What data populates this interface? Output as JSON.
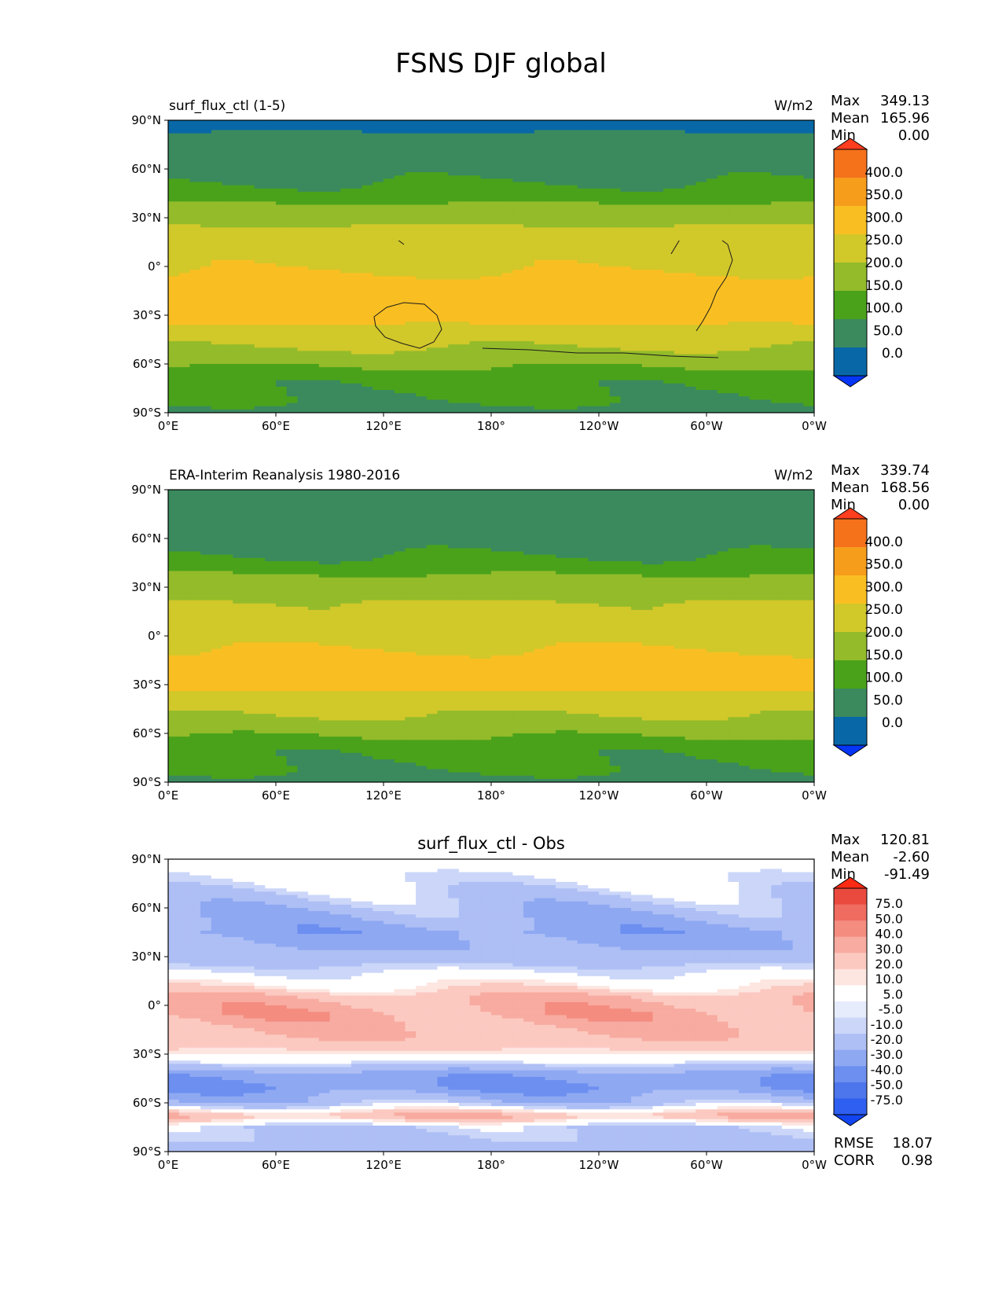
{
  "figure_title": "FSNS DJF global",
  "colors": {
    "main_levels": [
      "#0535f5",
      "#0868a7",
      "#3a8a5e",
      "#4aa21a",
      "#93bb2a",
      "#d1c82a",
      "#f9bf22",
      "#f79d1c",
      "#f5711a",
      "#ff3d1f"
    ],
    "diff_levels": [
      "#1245f0",
      "#2f5ff0",
      "#4d76ec",
      "#6c8ff0",
      "#8ea8f2",
      "#aebff5",
      "#cbd6f9",
      "#e6ecfc",
      "#ffffff",
      "#fde5e0",
      "#fbc9c0",
      "#f8aba0",
      "#f48c80",
      "#f06b60",
      "#ea4a3e",
      "#ff2a14"
    ],
    "diff_white": "#ffffff"
  },
  "icons": {
    "colorbar_arrow": "colorbar-extend-arrow-icon"
  },
  "chart_data": [
    {
      "type": "heatmap",
      "title": "surf_flux_ctl (1-5)",
      "units": "W/m2",
      "stats": {
        "Max": "349.13",
        "Mean": "165.96",
        "Min": "0.00"
      },
      "colorbar_levels": [
        "0.0",
        "50.0",
        "100.0",
        "150.0",
        "200.0",
        "250.0",
        "300.0",
        "350.0",
        "400.0"
      ],
      "colorbar_extend": "both",
      "x_ticks": [
        "0°E",
        "60°E",
        "120°E",
        "180°",
        "120°W",
        "60°W",
        "0°W"
      ],
      "y_ticks": [
        "90°N",
        "60°N",
        "30°N",
        "0°",
        "30°S",
        "60°S",
        "90°S"
      ],
      "lon_range": [
        0,
        360
      ],
      "lat_range": [
        -90,
        90
      ],
      "zonal_profile": {
        "lat": [
          90,
          84,
          78,
          60,
          45,
          38,
          30,
          20,
          10,
          0,
          -10,
          -20,
          -30,
          -40,
          -50,
          -60,
          -70,
          -90
        ],
        "value": [
          10,
          45,
          70,
          80,
          115,
          155,
          180,
          220,
          230,
          240,
          270,
          285,
          275,
          230,
          200,
          160,
          110,
          95
        ]
      }
    },
    {
      "type": "heatmap",
      "title": "ERA-Interim Reanalysis 1980-2016",
      "units": "W/m2",
      "stats": {
        "Max": "339.74",
        "Mean": "168.56",
        "Min": "0.00"
      },
      "colorbar_levels": [
        "0.0",
        "50.0",
        "100.0",
        "150.0",
        "200.0",
        "250.0",
        "300.0",
        "350.0",
        "400.0"
      ],
      "colorbar_extend": "both",
      "x_ticks": [
        "0°E",
        "60°E",
        "120°E",
        "180°",
        "120°W",
        "60°W",
        "0°W"
      ],
      "y_ticks": [
        "90°N",
        "60°N",
        "30°N",
        "0°",
        "30°S",
        "60°S",
        "90°S"
      ],
      "lon_range": [
        0,
        360
      ],
      "lat_range": [
        -90,
        90
      ],
      "zonal_profile": {
        "lat": [
          90,
          60,
          45,
          38,
          30,
          20,
          10,
          0,
          -10,
          -20,
          -30,
          -40,
          -50,
          -60,
          -70,
          -90
        ],
        "value": [
          60,
          75,
          110,
          150,
          170,
          205,
          215,
          225,
          255,
          275,
          265,
          225,
          195,
          160,
          110,
          95
        ]
      }
    },
    {
      "type": "heatmap",
      "title": "surf_flux_ctl - Obs",
      "units": "",
      "stats": {
        "Max": "120.81",
        "Mean": "-2.60",
        "Min": "-91.49"
      },
      "colorbar_levels": [
        "-75.0",
        "-50.0",
        "-40.0",
        "-30.0",
        "-20.0",
        "-10.0",
        "-5.0",
        "5.0",
        "10.0",
        "20.0",
        "30.0",
        "40.0",
        "50.0",
        "75.0"
      ],
      "colorbar_extend": "both",
      "x_ticks": [
        "0°E",
        "60°E",
        "120°E",
        "180°",
        "120°W",
        "60°W",
        "0°W"
      ],
      "y_ticks": [
        "90°N",
        "60°N",
        "30°N",
        "0°",
        "30°S",
        "60°S",
        "90°S"
      ],
      "lon_range": [
        0,
        360
      ],
      "lat_range": [
        -90,
        90
      ],
      "zonal_profile": {
        "lat": [
          90,
          75,
          60,
          45,
          35,
          25,
          12,
          5,
          -5,
          -15,
          -25,
          -35,
          -42,
          -50,
          -60,
          -68,
          -75,
          -90
        ],
        "value": [
          0,
          -5,
          -15,
          -25,
          -20,
          -10,
          5,
          20,
          25,
          20,
          15,
          -5,
          -25,
          -30,
          -15,
          20,
          -10,
          -15
        ]
      },
      "metrics": {
        "RMSE": "18.07",
        "CORR": "0.98"
      }
    }
  ]
}
